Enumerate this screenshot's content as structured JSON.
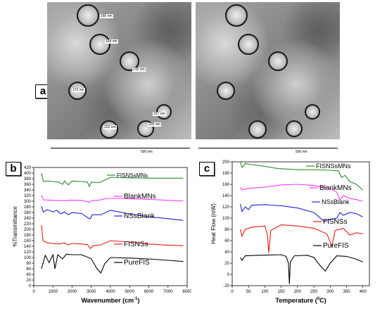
{
  "panels": {
    "a": "a",
    "b": "b",
    "c": "c"
  },
  "tem": {
    "scale_text": "500 nm",
    "size_labels": [
      "166 nm",
      "164 nm",
      "215 nm",
      "172 nm",
      "157 nm",
      "222 nm",
      "200 nm"
    ]
  },
  "chart_data": [
    {
      "type": "line",
      "xlabel": "Wavenumber (cm",
      "xlabel_sup": "-1",
      "xlabel_close": ")",
      "ylabel": "%Transmittance",
      "xlim": [
        0,
        8000
      ],
      "ylim": [
        0,
        420
      ],
      "xticks": [
        0,
        1000,
        2000,
        3000,
        4000,
        5000,
        6000,
        7000,
        8000
      ],
      "yticks": [
        0,
        20,
        40,
        60,
        80,
        100,
        120,
        140,
        160,
        180,
        200,
        220,
        240,
        260,
        280,
        300,
        320,
        340,
        360,
        380,
        400,
        420
      ],
      "grid": false,
      "legend": "inline labels",
      "series": [
        {
          "name": "FISNSsMNs",
          "color": "#2e8b2e",
          "points": [
            [
              400,
              400
            ],
            [
              500,
              370
            ],
            [
              700,
              372
            ],
            [
              1000,
              370
            ],
            [
              1300,
              368
            ],
            [
              1500,
              360
            ],
            [
              1600,
              372
            ],
            [
              1800,
              358
            ],
            [
              2000,
              372
            ],
            [
              2500,
              370
            ],
            [
              2800,
              368
            ],
            [
              2900,
              352
            ],
            [
              3000,
              368
            ],
            [
              3400,
              366
            ],
            [
              3600,
              372
            ],
            [
              4000,
              385
            ],
            [
              5000,
              383
            ],
            [
              6000,
              382
            ],
            [
              7000,
              382
            ],
            [
              7800,
              382
            ]
          ]
        },
        {
          "name": "BlankMNs",
          "color": "#ff33ff",
          "points": [
            [
              400,
              322
            ],
            [
              500,
              305
            ],
            [
              800,
              304
            ],
            [
              1200,
              303
            ],
            [
              1600,
              302
            ],
            [
              2000,
              304
            ],
            [
              2500,
              303
            ],
            [
              2900,
              296
            ],
            [
              3000,
              302
            ],
            [
              3400,
              304
            ],
            [
              3800,
              310
            ],
            [
              4500,
              310
            ],
            [
              5500,
              308
            ],
            [
              6500,
              305
            ],
            [
              7800,
              301
            ]
          ]
        },
        {
          "name": "NSsBlank",
          "color": "#1f1fdd",
          "points": [
            [
              400,
              282
            ],
            [
              500,
              262
            ],
            [
              700,
              270
            ],
            [
              1000,
              262
            ],
            [
              1200,
              268
            ],
            [
              1400,
              255
            ],
            [
              1600,
              262
            ],
            [
              1800,
              252
            ],
            [
              2000,
              260
            ],
            [
              2500,
              256
            ],
            [
              2850,
              240
            ],
            [
              2950,
              238
            ],
            [
              3050,
              252
            ],
            [
              3500,
              252
            ],
            [
              4000,
              268
            ],
            [
              5000,
              255
            ],
            [
              6000,
              245
            ],
            [
              7000,
              238
            ],
            [
              7800,
              232
            ]
          ]
        },
        {
          "name": "FISNSs",
          "color": "#e81a1a",
          "points": [
            [
              400,
              215
            ],
            [
              480,
              160
            ],
            [
              700,
              152
            ],
            [
              1000,
              150
            ],
            [
              1300,
              148
            ],
            [
              1600,
              152
            ],
            [
              1800,
              145
            ],
            [
              2000,
              150
            ],
            [
              2500,
              148
            ],
            [
              2800,
              146
            ],
            [
              2950,
              132
            ],
            [
              3100,
              142
            ],
            [
              3500,
              145
            ],
            [
              4000,
              160
            ],
            [
              5000,
              155
            ],
            [
              6000,
              148
            ],
            [
              7000,
              144
            ],
            [
              7800,
              142
            ]
          ]
        },
        {
          "name": "PureFIS",
          "color": "#000000",
          "points": [
            [
              400,
              60
            ],
            [
              600,
              108
            ],
            [
              800,
              82
            ],
            [
              1000,
              110
            ],
            [
              1100,
              60
            ],
            [
              1250,
              110
            ],
            [
              1500,
              95
            ],
            [
              1700,
              112
            ],
            [
              2000,
              110
            ],
            [
              2500,
              110
            ],
            [
              3000,
              95
            ],
            [
              3300,
              60
            ],
            [
              3500,
              45
            ],
            [
              3700,
              78
            ],
            [
              4000,
              100
            ],
            [
              5000,
              98
            ],
            [
              6000,
              95
            ],
            [
              7000,
              90
            ],
            [
              7800,
              86
            ]
          ]
        }
      ]
    },
    {
      "type": "line",
      "xlabel": "Temperature (",
      "xlabel_sup": "0",
      "xlabel_close": "C)",
      "ylabel": "Heat Flow (mW)",
      "xlim": [
        0,
        420
      ],
      "ylim": [
        -20,
        200
      ],
      "xticks": [
        0,
        50,
        100,
        150,
        200,
        250,
        300,
        350,
        400
      ],
      "yticks": [
        -20,
        0,
        20,
        40,
        60,
        80,
        100,
        120,
        140,
        160,
        180,
        200
      ],
      "grid": false,
      "legend": "inline labels",
      "series": [
        {
          "name": "FISNSsMNs",
          "color": "#2e8b2e",
          "points": [
            [
              25,
              200
            ],
            [
              30,
              190
            ],
            [
              40,
              197
            ],
            [
              60,
              195
            ],
            [
              100,
              192
            ],
            [
              140,
              188
            ],
            [
              200,
              186
            ],
            [
              250,
              186
            ],
            [
              300,
              185
            ],
            [
              325,
              184
            ],
            [
              335,
              172
            ],
            [
              345,
              176
            ],
            [
              360,
              165
            ],
            [
              380,
              160
            ],
            [
              400,
              150
            ]
          ]
        },
        {
          "name": "BlankMNs",
          "color": "#ff33ff",
          "points": [
            [
              25,
              155
            ],
            [
              30,
              150
            ],
            [
              50,
              153
            ],
            [
              100,
              155
            ],
            [
              150,
              159
            ],
            [
              200,
              160
            ],
            [
              250,
              158
            ],
            [
              300,
              153
            ],
            [
              320,
              146
            ],
            [
              330,
              132
            ],
            [
              340,
              140
            ],
            [
              360,
              135
            ],
            [
              380,
              133
            ],
            [
              400,
              130
            ]
          ]
        },
        {
          "name": "NSsBlank",
          "color": "#1f1fdd",
          "points": [
            [
              25,
              125
            ],
            [
              30,
              112
            ],
            [
              40,
              120
            ],
            [
              50,
              115
            ],
            [
              60,
              123
            ],
            [
              100,
              124
            ],
            [
              150,
              122
            ],
            [
              200,
              118
            ],
            [
              250,
              110
            ],
            [
              280,
              95
            ],
            [
              300,
              98
            ],
            [
              320,
              100
            ],
            [
              330,
              110
            ],
            [
              340,
              105
            ],
            [
              360,
              110
            ],
            [
              380,
              108
            ],
            [
              400,
              102
            ]
          ]
        },
        {
          "name": "FISNSs",
          "color": "#e81a1a",
          "points": [
            [
              25,
              80
            ],
            [
              30,
              68
            ],
            [
              40,
              80
            ],
            [
              60,
              84
            ],
            [
              100,
              86
            ],
            [
              108,
              70
            ],
            [
              112,
              38
            ],
            [
              118,
              78
            ],
            [
              150,
              88
            ],
            [
              200,
              86
            ],
            [
              250,
              82
            ],
            [
              290,
              72
            ],
            [
              305,
              50
            ],
            [
              315,
              78
            ],
            [
              340,
              82
            ],
            [
              360,
              70
            ],
            [
              380,
              74
            ],
            [
              400,
              72
            ]
          ]
        },
        {
          "name": "PureFIS",
          "color": "#000000",
          "points": [
            [
              25,
              30
            ],
            [
              30,
              25
            ],
            [
              40,
              33
            ],
            [
              80,
              34
            ],
            [
              150,
              35
            ],
            [
              165,
              32
            ],
            [
              172,
              20
            ],
            [
              175,
              -17
            ],
            [
              178,
              22
            ],
            [
              190,
              33
            ],
            [
              230,
              34
            ],
            [
              250,
              30
            ],
            [
              270,
              15
            ],
            [
              285,
              6
            ],
            [
              300,
              20
            ],
            [
              320,
              33
            ],
            [
              350,
              32
            ],
            [
              380,
              27
            ],
            [
              400,
              22
            ]
          ]
        }
      ]
    }
  ]
}
